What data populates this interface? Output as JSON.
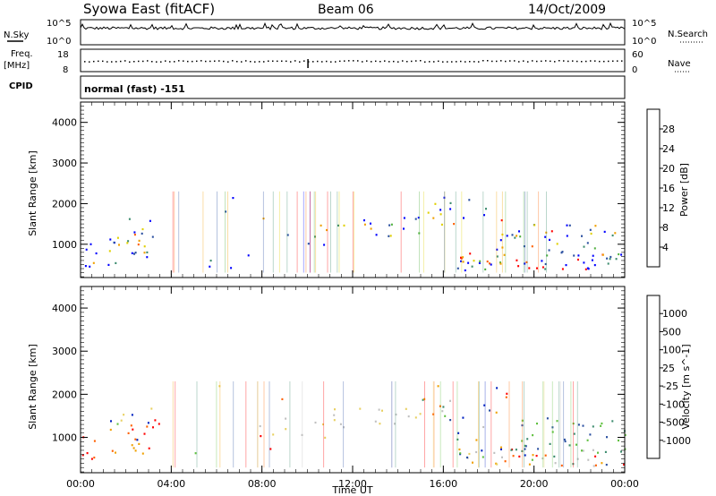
{
  "header": {
    "title": "Syowa East (fitACF)",
    "beam": "Beam 06",
    "date": "14/Oct/2009"
  },
  "top_panels": {
    "nsky_label": "N.Sky",
    "nsearch_label": "N.Search",
    "nsky_ticks": [
      "10^5",
      "10^0"
    ],
    "nsearch_ticks": [
      "10^5",
      "10^0"
    ],
    "freq_label_1": "Freq.",
    "freq_label_2": "[MHz]",
    "freq_ticks": [
      "18",
      "8"
    ],
    "nave_label": "Nave",
    "nave_ticks": [
      "60",
      "0"
    ],
    "cpid_label": "CPID",
    "cpid_text": "normal (fast) -151"
  },
  "colors": {
    "power": [
      "#0000ff",
      "#2a4fa0",
      "#3c8c6e",
      "#50b040",
      "#e0d000",
      "#f0a000",
      "#ff6000",
      "#ff0000"
    ],
    "velocity": [
      "#ff0000",
      "#ff6000",
      "#f0a000",
      "#e8d060",
      "#c0c0c0",
      "#60c040",
      "#3c8c6e",
      "#2a4fa0",
      "#0020c0"
    ]
  },
  "chart_data": [
    {
      "type": "heatmap",
      "name": "power",
      "ylabel": "Slant Range [km]",
      "xlabel": "",
      "colorbar_label": "Power [dB]",
      "colorbar_ticks": [
        "28",
        "24",
        "20",
        "16",
        "12",
        "8",
        "4"
      ],
      "ylim": [
        180,
        4500
      ],
      "yticks": [
        "4000",
        "3000",
        "2000",
        "1000"
      ],
      "xlim_hours": [
        0,
        24
      ],
      "xticks": [
        "00:00",
        "04:00",
        "08:00",
        "12:00",
        "16:00",
        "20:00",
        "00:00"
      ]
    },
    {
      "type": "heatmap",
      "name": "velocity",
      "ylabel": "Slant Range [km]",
      "xlabel": "Time UT",
      "colorbar_label": "Velocity [m s^-1]",
      "colorbar_ticks": [
        "1000",
        "500",
        "100",
        "25",
        "-25",
        "-100",
        "-500",
        "-1000"
      ],
      "ylim": [
        180,
        4500
      ],
      "yticks": [
        "4000",
        "3000",
        "2000",
        "1000"
      ],
      "xlim_hours": [
        0,
        24
      ],
      "xticks": [
        "00:00",
        "04:00",
        "08:00",
        "12:00",
        "16:00",
        "20:00",
        "00:00"
      ]
    }
  ]
}
